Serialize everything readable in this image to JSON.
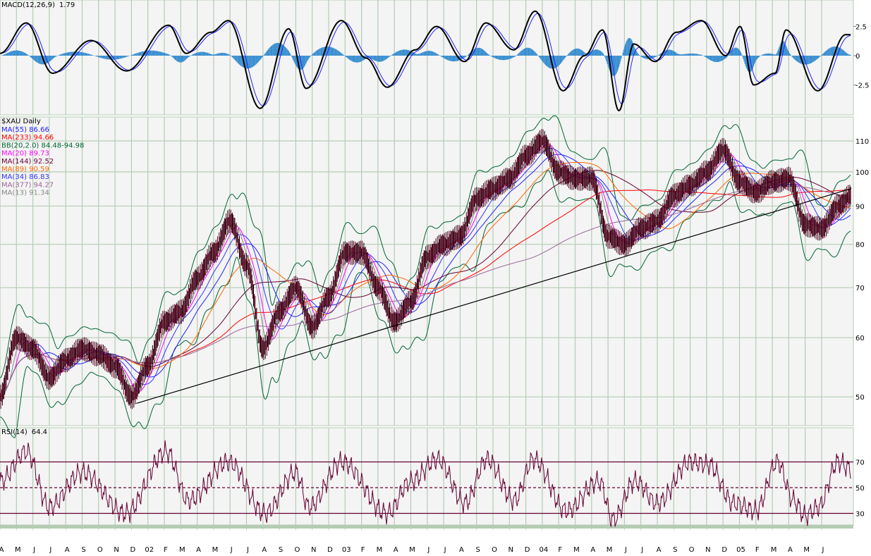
{
  "chart_data": [
    {
      "panel": "macd",
      "type": "line",
      "title": "MACD(12,26,9)",
      "value": "1.79",
      "ylim": [
        -5,
        5
      ],
      "yticks": [
        "2.5",
        "0",
        "-2.5"
      ],
      "ytick_values": [
        2.5,
        0,
        -2.5
      ],
      "colors": {
        "macd": "#000000",
        "signal": "#2020ff",
        "histogram": "#3a8fd0"
      },
      "series": [
        {
          "key": "macd",
          "points": [
            [
              "2001-04-01",
              0.2
            ],
            [
              "2001-05-19",
              2.8
            ],
            [
              "2001-07-07",
              -1.5
            ],
            [
              "2001-09-17",
              1.3
            ],
            [
              "2001-11-22",
              -1.3
            ],
            [
              "2002-02-09",
              2.6
            ],
            [
              "2002-03-11",
              0.2
            ],
            [
              "2002-04-26",
              2.0
            ],
            [
              "2002-05-28",
              3.0
            ],
            [
              "2002-07-26",
              -4.5
            ],
            [
              "2002-09-18",
              2.3
            ],
            [
              "2002-10-20",
              -2.8
            ],
            [
              "2002-12-24",
              3.0
            ],
            [
              "2003-02-09",
              -0.2
            ],
            [
              "2003-03-18",
              -2.7
            ],
            [
              "2003-05-09",
              0.5
            ],
            [
              "2003-06-18",
              2.5
            ],
            [
              "2003-08-09",
              -0.5
            ],
            [
              "2003-09-18",
              2.8
            ],
            [
              "2003-11-09",
              0.5
            ],
            [
              "2003-12-18",
              3.8
            ],
            [
              "2004-02-09",
              -3.0
            ],
            [
              "2004-03-18",
              0.0
            ],
            [
              "2004-04-21",
              2.2
            ],
            [
              "2004-05-21",
              -4.7
            ],
            [
              "2004-06-18",
              1.0
            ],
            [
              "2004-07-27",
              -0.5
            ],
            [
              "2004-09-06",
              2.0
            ],
            [
              "2004-10-21",
              3.0
            ],
            [
              "2004-12-06",
              0.0
            ],
            [
              "2005-01-02",
              2.5
            ],
            [
              "2005-01-27",
              -2.5
            ],
            [
              "2005-03-06",
              -1.5
            ],
            [
              "2005-03-26",
              2.2
            ],
            [
              "2005-05-24",
              -3.0
            ],
            [
              "2005-07-15",
              1.8
            ],
            [
              "2005-07-25",
              1.79
            ]
          ]
        }
      ]
    },
    {
      "panel": "price",
      "type": "line",
      "title": "$XAU Daily",
      "scale": "log",
      "ylim": [
        45,
        120
      ],
      "yticks": [
        "110",
        "100",
        "90",
        "80",
        "70",
        "60",
        "50"
      ],
      "ytick_values": [
        110,
        100,
        90,
        80,
        70,
        60,
        50
      ],
      "legend_placement": "top-left",
      "legend": [
        {
          "label": "MA(55) 86.66",
          "color": "#2020ff"
        },
        {
          "label": "MA(233) 94.66",
          "color": "#ff0000"
        },
        {
          "label": "BB(20,2.0) 84.48-94.98",
          "color": "#006633"
        },
        {
          "label": "MA(20) 89.73",
          "color": "#ff00ff"
        },
        {
          "label": "MA(144) 92.52",
          "color": "#660033"
        },
        {
          "label": "MA(89) 90.59",
          "color": "#ff6600"
        },
        {
          "label": "MA(34) 86.83",
          "color": "#3333ff"
        },
        {
          "label": "MA(377) 94.27",
          "color": "#996699"
        },
        {
          "label": "MA(13) 91.34",
          "color": "#888888"
        }
      ],
      "price_color": "#660022",
      "series": [
        {
          "key": "close",
          "points": [
            [
              "2001-04",
              50
            ],
            [
              "2001-05",
              60
            ],
            [
              "2001-06",
              58
            ],
            [
              "2001-07",
              53
            ],
            [
              "2001-08",
              56
            ],
            [
              "2001-09",
              58
            ],
            [
              "2001-10",
              57
            ],
            [
              "2001-11",
              55
            ],
            [
              "2001-12",
              50
            ],
            [
              "2002-01",
              55
            ],
            [
              "2002-02",
              63
            ],
            [
              "2002-03",
              65
            ],
            [
              "2002-04",
              72
            ],
            [
              "2002-05",
              78
            ],
            [
              "2002-06",
              86
            ],
            [
              "2002-07",
              75
            ],
            [
              "2002-08",
              58
            ],
            [
              "2002-09",
              65
            ],
            [
              "2002-10",
              70
            ],
            [
              "2002-11",
              62
            ],
            [
              "2002-12",
              68
            ],
            [
              "2003-01",
              78
            ],
            [
              "2003-02",
              78
            ],
            [
              "2003-03",
              70
            ],
            [
              "2003-04",
              63
            ],
            [
              "2003-05",
              67
            ],
            [
              "2003-06",
              77
            ],
            [
              "2003-07",
              80
            ],
            [
              "2003-08",
              82
            ],
            [
              "2003-09",
              92
            ],
            [
              "2003-10",
              95
            ],
            [
              "2003-11",
              98
            ],
            [
              "2003-12",
              105
            ],
            [
              "2004-01",
              110
            ],
            [
              "2004-02",
              100
            ],
            [
              "2004-03",
              98
            ],
            [
              "2004-04",
              98
            ],
            [
              "2004-05",
              82
            ],
            [
              "2004-06",
              80
            ],
            [
              "2004-07",
              84
            ],
            [
              "2004-08",
              86
            ],
            [
              "2004-09",
              93
            ],
            [
              "2004-10",
              96
            ],
            [
              "2004-11",
              100
            ],
            [
              "2004-12",
              107
            ],
            [
              "2005-01",
              97
            ],
            [
              "2005-02",
              94
            ],
            [
              "2005-03",
              97
            ],
            [
              "2005-04",
              98
            ],
            [
              "2005-05",
              85
            ],
            [
              "2005-06",
              84
            ],
            [
              "2005-07",
              90
            ],
            [
              "2005-07-25",
              93
            ]
          ]
        }
      ],
      "trendline": {
        "from": [
          "2001-12-10",
          49
        ],
        "to": [
          "2005-07-25",
          95
        ],
        "color": "#000000"
      }
    },
    {
      "panel": "rsi",
      "type": "line",
      "title": "RSI(14)",
      "value": "64.4",
      "ylim": [
        21,
        97
      ],
      "yticks": [
        "70",
        "50",
        "30"
      ],
      "ytick_values": [
        70,
        50,
        30
      ],
      "color": "#660033",
      "series": [
        {
          "key": "rsi",
          "points": [
            [
              "2001-04-01",
              55
            ],
            [
              "2001-05-19",
              78
            ],
            [
              "2001-07-01",
              35
            ],
            [
              "2001-09-01",
              62
            ],
            [
              "2001-11-20",
              30
            ],
            [
              "2002-02-05",
              78
            ],
            [
              "2002-03-15",
              40
            ],
            [
              "2002-05-28",
              70
            ],
            [
              "2002-08-05",
              30
            ],
            [
              "2002-10-01",
              62
            ],
            [
              "2002-10-25",
              35
            ],
            [
              "2002-12-25",
              70
            ],
            [
              "2003-03-18",
              30
            ],
            [
              "2003-05-01",
              55
            ],
            [
              "2003-06-20",
              72
            ],
            [
              "2003-08-10",
              38
            ],
            [
              "2003-09-20",
              72
            ],
            [
              "2003-11-10",
              40
            ],
            [
              "2003-12-15",
              72
            ],
            [
              "2004-02-15",
              32
            ],
            [
              "2004-04-15",
              55
            ],
            [
              "2004-05-10",
              25
            ],
            [
              "2004-06-20",
              55
            ],
            [
              "2004-08-01",
              38
            ],
            [
              "2004-10-01",
              70
            ],
            [
              "2004-11-05",
              68
            ],
            [
              "2004-12-20",
              38
            ],
            [
              "2005-02-01",
              32
            ],
            [
              "2005-03-10",
              70
            ],
            [
              "2005-04-10",
              40
            ],
            [
              "2005-05-01",
              28
            ],
            [
              "2005-05-25",
              35
            ],
            [
              "2005-07-01",
              70
            ],
            [
              "2005-07-25",
              64.4
            ]
          ]
        }
      ]
    }
  ],
  "x_axis": {
    "labels": [
      "A",
      "M",
      "J",
      "J",
      "A",
      "S",
      "O",
      "N",
      "D",
      "02",
      "F",
      "M",
      "A",
      "M",
      "J",
      "J",
      "A",
      "S",
      "O",
      "N",
      "D",
      "03",
      "F",
      "M",
      "A",
      "M",
      "J",
      "J",
      "A",
      "S",
      "O",
      "N",
      "D",
      "04",
      "F",
      "M",
      "A",
      "M",
      "J",
      "J",
      "A",
      "S",
      "O",
      "N",
      "D",
      "05",
      "F",
      "M",
      "A",
      "M",
      "J"
    ]
  },
  "colors": {
    "plot_bg": "#f4f4f4",
    "grid": "#b4ccb4"
  }
}
